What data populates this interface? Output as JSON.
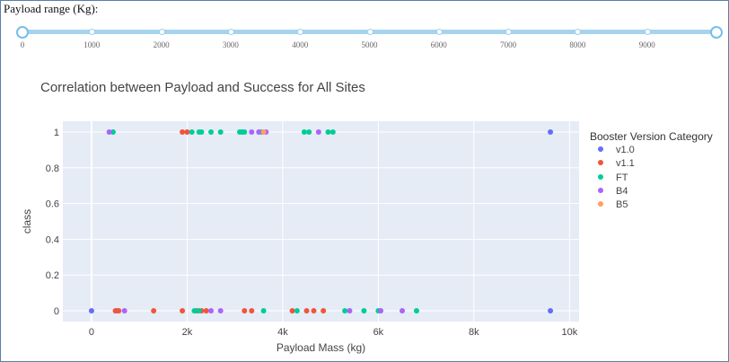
{
  "slider": {
    "label": "Payload range (Kg):",
    "min": 0,
    "max": 10000,
    "selected": [
      0,
      10000
    ],
    "marks": [
      "0",
      "1000",
      "2000",
      "3000",
      "4000",
      "5000",
      "6000",
      "7000",
      "8000",
      "9000"
    ]
  },
  "colors": {
    "slider_track": "#a7d3ef",
    "plot_bg": "#e5ecf6",
    "v1.0": "#636efa",
    "v1.1": "#ef553b",
    "FT": "#00cc96",
    "B4": "#ab63fa",
    "B5": "#ffa15a"
  },
  "chart_data": {
    "type": "scatter",
    "title": "Correlation between Payload and Success for All Sites",
    "xlabel": "Payload Mass (kg)",
    "ylabel": "class",
    "xlim": [
      -600,
      10200
    ],
    "ylim": [
      -0.06,
      1.06
    ],
    "xticks": [
      {
        "v": 0,
        "label": "0"
      },
      {
        "v": 2000,
        "label": "2k"
      },
      {
        "v": 4000,
        "label": "4k"
      },
      {
        "v": 6000,
        "label": "6k"
      },
      {
        "v": 8000,
        "label": "8k"
      },
      {
        "v": 10000,
        "label": "10k"
      }
    ],
    "yticks": [
      {
        "v": 0,
        "label": "0"
      },
      {
        "v": 0.2,
        "label": "0.2"
      },
      {
        "v": 0.4,
        "label": "0.4"
      },
      {
        "v": 0.6,
        "label": "0.6"
      },
      {
        "v": 0.8,
        "label": "0.8"
      },
      {
        "v": 1,
        "label": "1"
      }
    ],
    "grid": true,
    "legend": {
      "title": "Booster Version Category",
      "placement": "right"
    },
    "series": [
      {
        "name": "v1.0",
        "points": [
          [
            0,
            0
          ],
          [
            525,
            0
          ],
          [
            9600,
            1
          ],
          [
            9600,
            0
          ]
        ]
      },
      {
        "name": "v1.1",
        "points": [
          [
            500,
            0
          ],
          [
            570,
            0
          ],
          [
            1300,
            0
          ],
          [
            1900,
            0
          ],
          [
            2200,
            0
          ],
          [
            2300,
            0
          ],
          [
            2400,
            0
          ],
          [
            3200,
            0
          ],
          [
            3350,
            0
          ],
          [
            4200,
            0
          ],
          [
            4500,
            0
          ],
          [
            4650,
            0
          ],
          [
            4850,
            0
          ],
          [
            1900,
            1
          ],
          [
            2000,
            1
          ]
        ]
      },
      {
        "name": "FT",
        "points": [
          [
            450,
            1
          ],
          [
            2100,
            1
          ],
          [
            2250,
            1
          ],
          [
            2300,
            1
          ],
          [
            2500,
            1
          ],
          [
            2700,
            1
          ],
          [
            3100,
            1
          ],
          [
            3150,
            1
          ],
          [
            3200,
            1
          ],
          [
            3550,
            1
          ],
          [
            4450,
            1
          ],
          [
            4550,
            1
          ],
          [
            4950,
            1
          ],
          [
            5050,
            1
          ],
          [
            2150,
            0
          ],
          [
            2250,
            0
          ],
          [
            3600,
            0
          ],
          [
            4300,
            0
          ],
          [
            5300,
            0
          ],
          [
            5700,
            0
          ],
          [
            6000,
            0
          ],
          [
            6800,
            0
          ]
        ]
      },
      {
        "name": "B4",
        "points": [
          [
            370,
            1
          ],
          [
            3350,
            1
          ],
          [
            3500,
            1
          ],
          [
            3650,
            1
          ],
          [
            4750,
            1
          ],
          [
            690,
            0
          ],
          [
            2500,
            0
          ],
          [
            2700,
            0
          ],
          [
            5400,
            0
          ],
          [
            6050,
            0
          ],
          [
            6500,
            0
          ]
        ]
      },
      {
        "name": "B5",
        "points": [
          [
            3600,
            1
          ]
        ]
      }
    ]
  }
}
